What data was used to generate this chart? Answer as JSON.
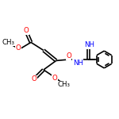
{
  "bg_color": "#ffffff",
  "atom_colors": {
    "C": "#000000",
    "O": "#ff0000",
    "N": "#0000ff",
    "H": "#000000"
  },
  "bond_color": "#000000",
  "bond_width": 1.2,
  "figsize": [
    1.5,
    1.5
  ],
  "dpi": 100,
  "xlim": [
    0,
    10
  ],
  "ylim": [
    0,
    10
  ]
}
